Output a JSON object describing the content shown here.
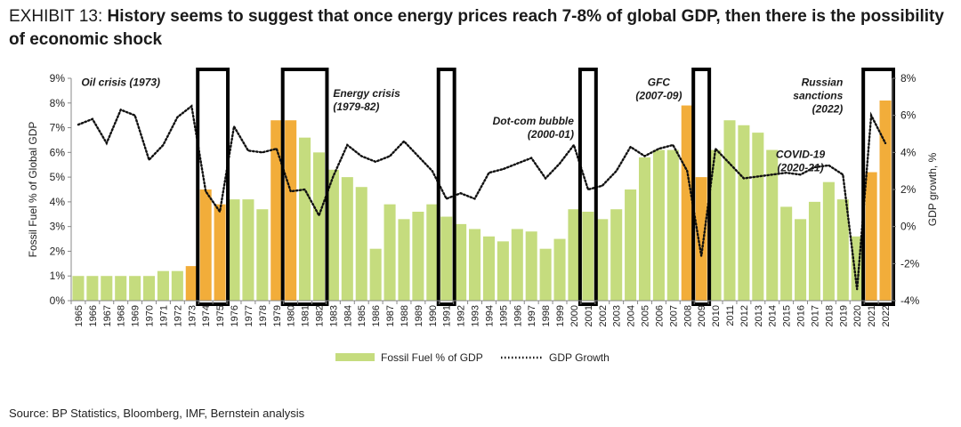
{
  "header": {
    "exhibit_label": "EXHIBIT 13:",
    "title": "History seems to suggest that once energy prices reach 7-8% of global GDP, then there is the possibility of economic shock"
  },
  "source": "Source: BP Statistics, Bloomberg, IMF, Bernstein analysis",
  "chart_data": {
    "type": "bar",
    "title": "History seems to suggest that once energy prices reach 7-8% of global GDP, then there is the possibility of economic shock",
    "categories": [
      "1965",
      "1966",
      "1967",
      "1968",
      "1969",
      "1970",
      "1971",
      "1972",
      "1973",
      "1974",
      "1975",
      "1976",
      "1977",
      "1978",
      "1979",
      "1980",
      "1981",
      "1982",
      "1983",
      "1984",
      "1985",
      "1986",
      "1987",
      "1988",
      "1989",
      "1990",
      "1991",
      "1992",
      "1993",
      "1994",
      "1995",
      "1996",
      "1997",
      "1998",
      "1999",
      "2000",
      "2001",
      "2002",
      "2003",
      "2004",
      "2005",
      "2006",
      "2007",
      "2008",
      "2009",
      "2010",
      "2011",
      "2012",
      "2013",
      "2014",
      "2015",
      "2016",
      "2017",
      "2018",
      "2019",
      "2020",
      "2021",
      "2022"
    ],
    "series": [
      {
        "name": "Fossil Fuel % of GDP",
        "axis": "left",
        "kind": "bar",
        "color": "#c5dc7e",
        "highlight_color": "#f2ad3a",
        "highlight_categories": [
          "1973",
          "1974",
          "1975",
          "1979",
          "1980",
          "2008",
          "2009",
          "2021",
          "2022"
        ],
        "values": [
          1.0,
          1.0,
          1.0,
          1.0,
          1.0,
          1.0,
          1.2,
          1.2,
          1.4,
          4.5,
          3.9,
          4.1,
          4.1,
          3.7,
          7.3,
          7.3,
          6.6,
          6.0,
          5.3,
          5.0,
          4.6,
          2.1,
          3.9,
          3.3,
          3.6,
          3.9,
          3.4,
          3.1,
          2.9,
          2.6,
          2.4,
          2.9,
          2.8,
          2.1,
          2.5,
          3.7,
          3.6,
          3.3,
          3.7,
          4.5,
          5.8,
          6.1,
          6.1,
          7.9,
          5.0,
          6.1,
          7.3,
          7.1,
          6.8,
          6.1,
          3.8,
          3.3,
          4.0,
          4.8,
          4.1,
          2.6,
          5.2,
          8.1
        ]
      },
      {
        "name": "GDP Growth",
        "axis": "right",
        "kind": "line",
        "style": "dotted",
        "color": "#111111",
        "values": [
          5.5,
          5.8,
          4.5,
          6.3,
          6.0,
          3.6,
          4.4,
          5.9,
          6.5,
          1.9,
          0.8,
          5.4,
          4.1,
          4.0,
          4.2,
          1.9,
          2.0,
          0.6,
          2.7,
          4.4,
          3.8,
          3.5,
          3.8,
          4.6,
          3.8,
          3.0,
          1.5,
          1.8,
          1.5,
          2.9,
          3.1,
          3.4,
          3.7,
          2.6,
          3.4,
          4.4,
          2.0,
          2.2,
          3.0,
          4.3,
          3.8,
          4.2,
          4.4,
          3.0,
          -1.6,
          4.2,
          3.4,
          2.6,
          2.7,
          2.8,
          2.9,
          2.8,
          3.2,
          3.3,
          2.8,
          -3.4,
          6.0,
          4.5
        ]
      }
    ],
    "y_left": {
      "label": "Fossil Fuel % of Global GDP",
      "min": 0,
      "max": 9,
      "ticks": [
        "0%",
        "1%",
        "2%",
        "3%",
        "4%",
        "5%",
        "6%",
        "7%",
        "8%",
        "9%"
      ]
    },
    "y_right": {
      "label": "GDP growth, %",
      "min": -4,
      "max": 8,
      "ticks": [
        "-4%",
        "-2%",
        "0%",
        "2%",
        "4%",
        "6%",
        "8%"
      ]
    },
    "annotations": [
      {
        "lines": [
          "Oil crisis (1973)"
        ],
        "anchor": "1968",
        "y_right": 7.6,
        "align": "middle"
      },
      {
        "lines": [
          "Energy crisis",
          "(1979-82)"
        ],
        "anchor": "1983",
        "y_right": 7.0,
        "align": "start"
      },
      {
        "lines": [
          "Dot-com bubble",
          "(2000-01)"
        ],
        "anchor": "2000",
        "y_right": 5.5,
        "align": "end"
      },
      {
        "lines": [
          "GFC",
          "(2007-09)"
        ],
        "anchor": "2006",
        "y_right": 7.6,
        "align": "middle"
      },
      {
        "lines": [
          "Russian",
          "sanctions",
          "(2022)"
        ],
        "anchor": "2019",
        "y_right": 7.6,
        "align": "end"
      },
      {
        "lines": [
          "COVID-19",
          "(2020-21)"
        ],
        "anchor": "2016",
        "y_right": 3.7,
        "align": "middle"
      }
    ],
    "highlight_periods": [
      [
        "1974",
        "1975"
      ],
      [
        "1980",
        "1982"
      ],
      [
        "1991",
        "1991"
      ],
      [
        "2001",
        "2001"
      ],
      [
        "2009",
        "2009"
      ],
      [
        "2021",
        "2022"
      ]
    ],
    "legend": {
      "position": "bottom",
      "bar_label": "Fossil Fuel % of GDP",
      "line_label": "GDP Growth"
    }
  }
}
